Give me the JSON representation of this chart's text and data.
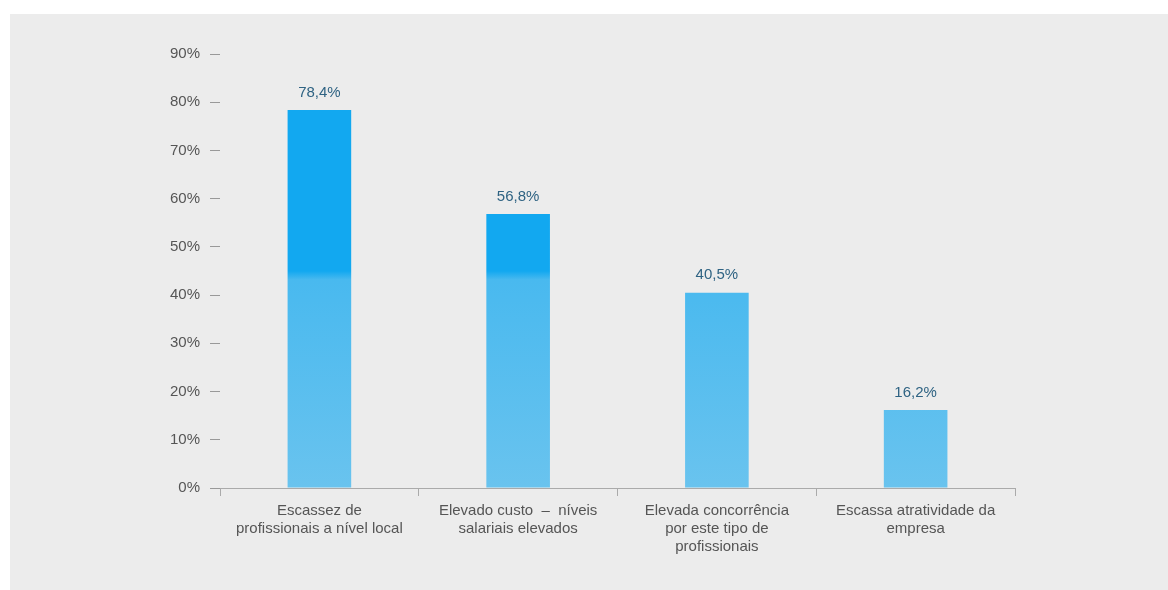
{
  "chart_data": {
    "type": "bar",
    "categories": [
      "Escassez de profissionais a nível local",
      "Elevado custo  –  níveis salariais elevados",
      "Elevada concorrência por este tipo de profissionais",
      "Escassa atratividade da empresa"
    ],
    "values": [
      78.4,
      56.8,
      40.5,
      16.2
    ],
    "value_labels": [
      "78,4%",
      "56,8%",
      "40,5%",
      "16,2%"
    ],
    "color": "#12a8f0",
    "ylim": [
      0,
      90
    ],
    "yticks": [
      {
        "value": 0,
        "label": "0%"
      },
      {
        "value": 10,
        "label": "10%"
      },
      {
        "value": 20,
        "label": "20%"
      },
      {
        "value": 30,
        "label": "30%"
      },
      {
        "value": 40,
        "label": "40%"
      },
      {
        "value": 50,
        "label": "50%"
      },
      {
        "value": 60,
        "label": "60%"
      },
      {
        "value": 70,
        "label": "70%"
      },
      {
        "value": 80,
        "label": "80%"
      },
      {
        "value": 90,
        "label": "90%"
      }
    ],
    "grid": false,
    "legend": false
  }
}
